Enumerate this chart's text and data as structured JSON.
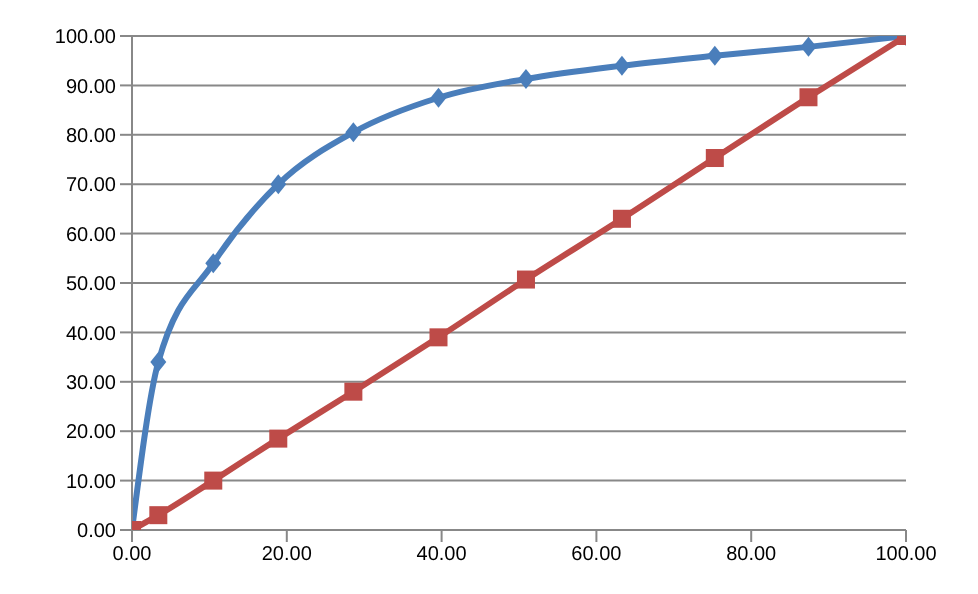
{
  "chart_data": {
    "type": "line",
    "xlim": [
      0,
      100
    ],
    "ylim": [
      0,
      100
    ],
    "xticks": [
      {
        "value": 0,
        "label": "0.00"
      },
      {
        "value": 20,
        "label": "20.00"
      },
      {
        "value": 40,
        "label": "40.00"
      },
      {
        "value": 60,
        "label": "60.00"
      },
      {
        "value": 80,
        "label": "80.00"
      },
      {
        "value": 100,
        "label": "100.00"
      }
    ],
    "yticks": [
      {
        "value": 0,
        "label": "0.00"
      },
      {
        "value": 10,
        "label": "10.00"
      },
      {
        "value": 20,
        "label": "20.00"
      },
      {
        "value": 30,
        "label": "30.00"
      },
      {
        "value": 40,
        "label": "40.00"
      },
      {
        "value": 50,
        "label": "50.00"
      },
      {
        "value": 60,
        "label": "60.00"
      },
      {
        "value": 70,
        "label": "70.00"
      },
      {
        "value": 80,
        "label": "80.00"
      },
      {
        "value": 90,
        "label": "90.00"
      },
      {
        "value": 100,
        "label": "100.00"
      }
    ],
    "grid": "y",
    "series": [
      {
        "color": "#4a7ebb",
        "marker": "diamond",
        "x": [
          0,
          3.4,
          10.5,
          18.9,
          28.6,
          39.6,
          50.9,
          63.3,
          75.3,
          87.4,
          100
        ],
        "values": [
          0,
          34,
          54,
          70,
          80.5,
          87.5,
          91.3,
          94,
          96,
          97.8,
          100
        ]
      },
      {
        "color": "#be4b48",
        "marker": "square",
        "x": [
          0,
          3.4,
          10.5,
          18.9,
          28.6,
          39.6,
          50.9,
          63.3,
          75.3,
          87.4,
          100
        ],
        "values": [
          0,
          3,
          10,
          18.5,
          28,
          39,
          50.7,
          63,
          75.3,
          87.6,
          100
        ]
      }
    ]
  }
}
